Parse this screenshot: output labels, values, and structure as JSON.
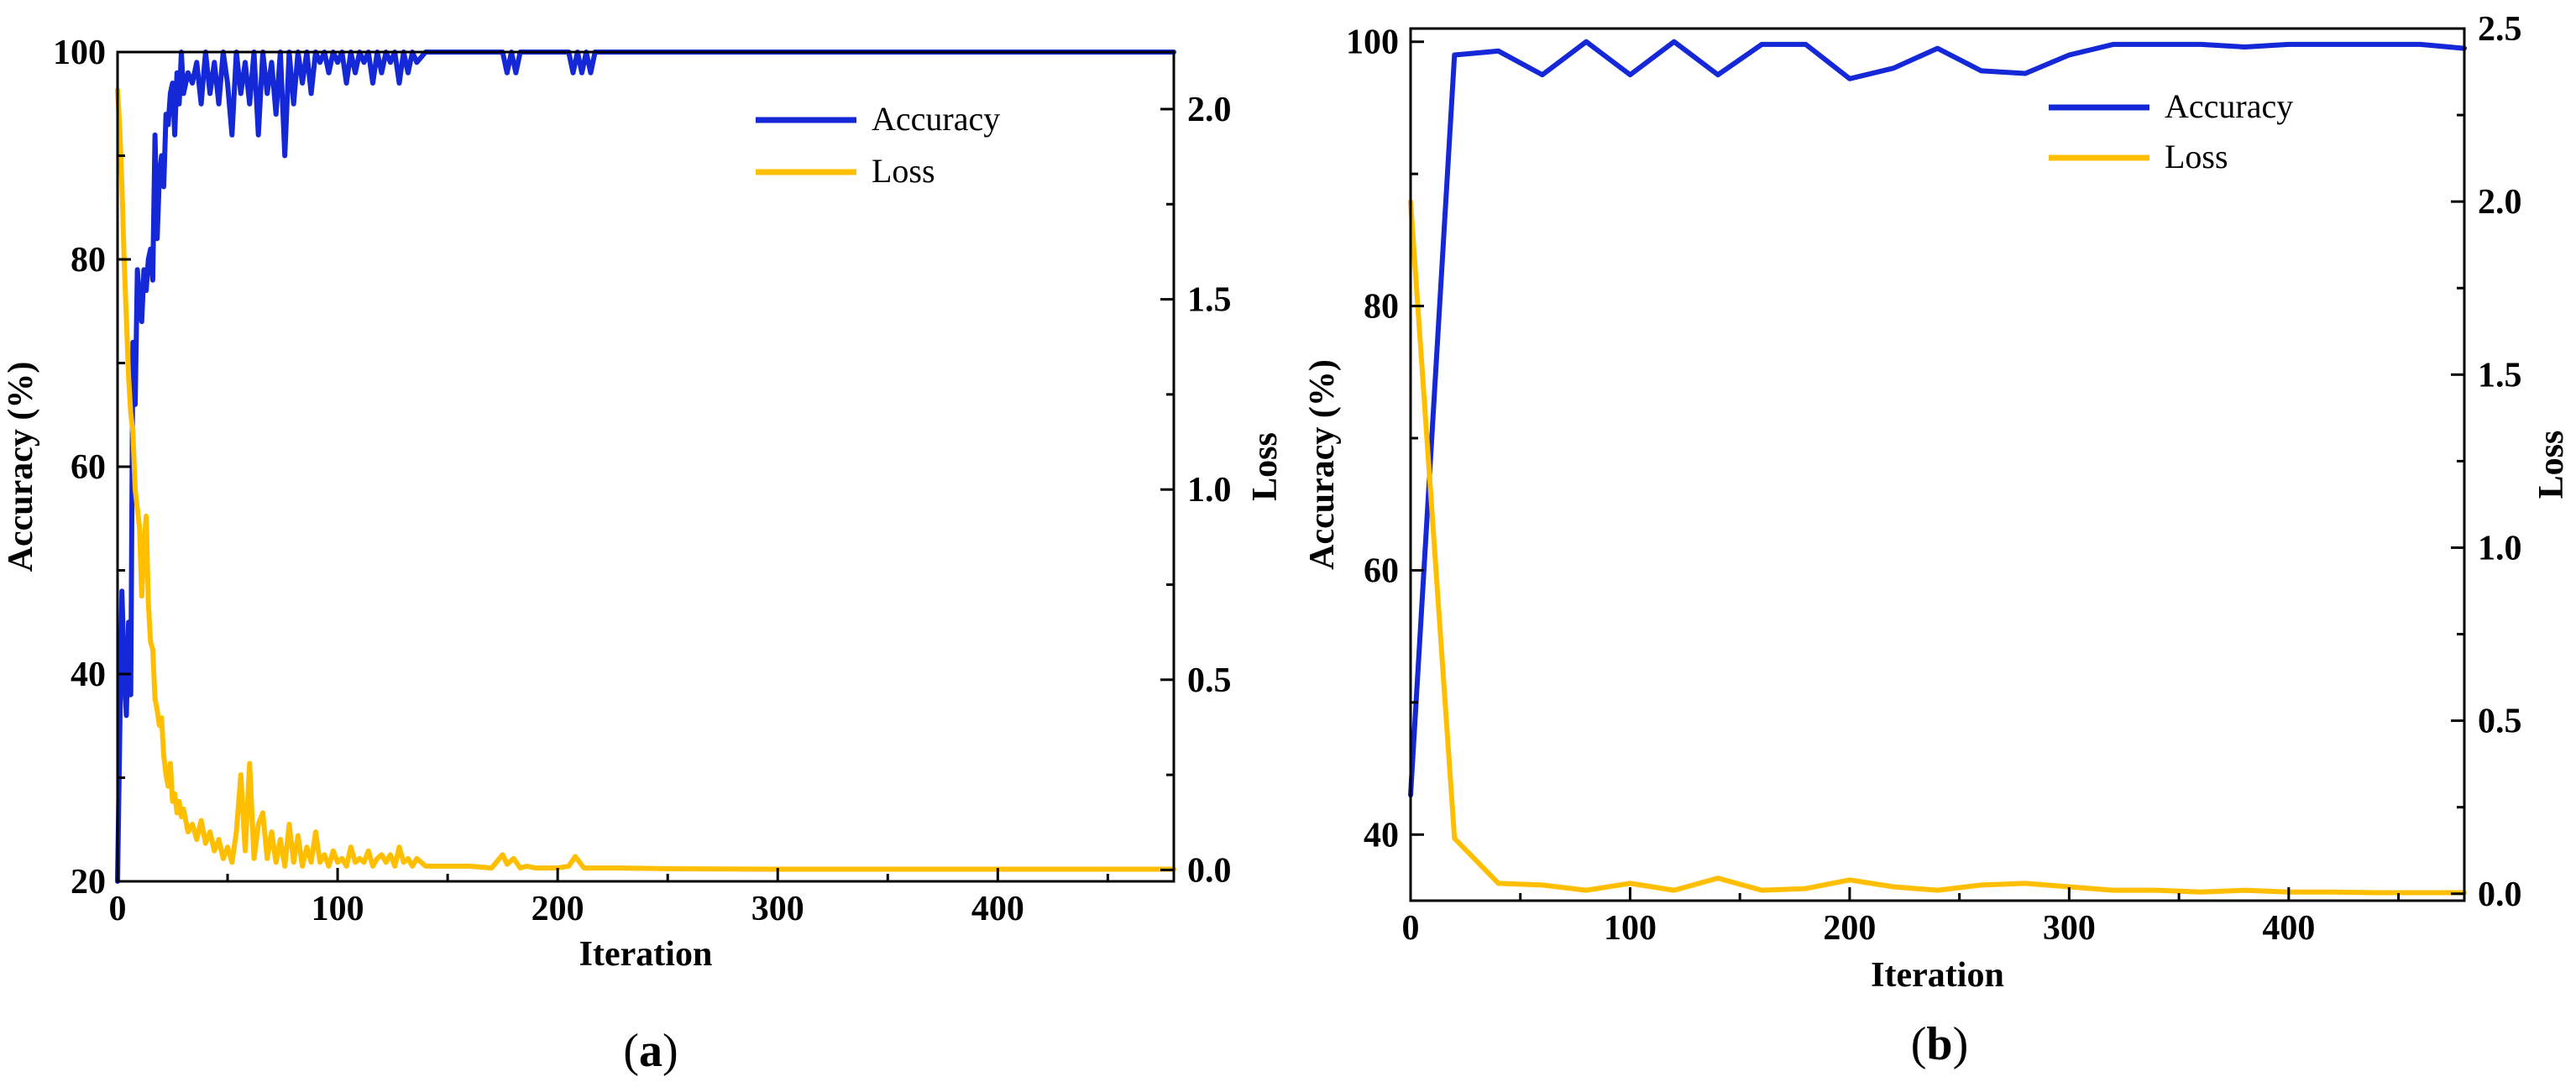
{
  "colors": {
    "accuracy": "#1428d8",
    "loss": "#ffbf00",
    "axis": "#000000"
  },
  "chart_data": [
    {
      "type": "line",
      "panel_label": "a",
      "xlabel": "Iteration",
      "ylabel": "Accuracy (%)",
      "y2label": "Loss",
      "xlim": [
        0,
        480
      ],
      "ylim": [
        20,
        100
      ],
      "y2lim": [
        -0.03,
        2.15
      ],
      "xticks": [
        0,
        100,
        200,
        300,
        400
      ],
      "yticks": [
        20,
        40,
        60,
        80,
        100
      ],
      "y2ticks": [
        0.0,
        0.5,
        1.0,
        1.5,
        2.0
      ],
      "y2tick_labels": [
        "0.0",
        "0.5",
        "1.0",
        "1.5",
        "2.0"
      ],
      "legend": [
        "Accuracy",
        "Loss"
      ],
      "legend_position": "top-right",
      "series": [
        {
          "name": "Accuracy",
          "axis": "left",
          "color": "#1428d8",
          "x": [
            0,
            2,
            3,
            4,
            5,
            6,
            7,
            8,
            9,
            10,
            11,
            12,
            13,
            14,
            15,
            16,
            17,
            18,
            19,
            20,
            21,
            22,
            23,
            24,
            25,
            26,
            27,
            28,
            29,
            30,
            32,
            34,
            36,
            38,
            40,
            42,
            44,
            46,
            48,
            50,
            52,
            54,
            56,
            58,
            60,
            62,
            64,
            66,
            68,
            70,
            72,
            74,
            76,
            78,
            80,
            82,
            84,
            86,
            88,
            90,
            92,
            94,
            96,
            98,
            100,
            102,
            104,
            106,
            108,
            110,
            112,
            114,
            116,
            118,
            120,
            122,
            124,
            126,
            128,
            130,
            132,
            134,
            136,
            140,
            175,
            177,
            179,
            181,
            183,
            185,
            205,
            207,
            209,
            211,
            213,
            215,
            217,
            480
          ],
          "y": [
            20,
            48,
            40,
            36,
            45,
            38,
            72,
            66,
            79,
            76,
            74,
            79,
            77,
            80,
            81,
            78,
            92,
            82,
            88,
            90,
            87,
            94,
            93,
            96,
            97,
            92,
            98,
            95,
            100,
            96,
            98,
            97,
            99,
            95,
            100,
            96,
            99,
            95,
            100,
            97,
            92,
            100,
            96,
            99,
            95,
            100,
            92,
            100,
            96,
            99,
            94,
            100,
            90,
            100,
            95,
            100,
            97,
            100,
            96,
            100,
            99,
            100,
            98,
            100,
            99,
            100,
            97,
            100,
            98,
            100,
            99,
            100,
            97,
            100,
            98,
            100,
            99,
            100,
            97,
            100,
            98,
            100,
            99,
            100,
            100,
            98,
            100,
            98,
            100,
            100,
            100,
            98,
            100,
            98,
            100,
            98,
            100,
            100
          ]
        },
        {
          "name": "Loss",
          "axis": "right",
          "color": "#ffbf00",
          "x": [
            0,
            1,
            2,
            3,
            4,
            5,
            6,
            7,
            8,
            9,
            10,
            11,
            12,
            13,
            14,
            15,
            16,
            17,
            18,
            19,
            20,
            21,
            22,
            23,
            24,
            25,
            26,
            27,
            28,
            29,
            30,
            32,
            34,
            36,
            38,
            40,
            42,
            44,
            46,
            48,
            50,
            52,
            54,
            56,
            58,
            60,
            62,
            64,
            66,
            68,
            70,
            72,
            74,
            76,
            78,
            80,
            82,
            84,
            86,
            88,
            90,
            92,
            94,
            96,
            98,
            100,
            102,
            104,
            106,
            108,
            110,
            112,
            114,
            116,
            118,
            120,
            122,
            124,
            126,
            128,
            130,
            132,
            134,
            136,
            140,
            150,
            160,
            170,
            175,
            177,
            180,
            183,
            186,
            190,
            200,
            205,
            208,
            212,
            220,
            230,
            250,
            300,
            350,
            400,
            450,
            480
          ],
          "y": [
            2.05,
            1.95,
            1.8,
            1.6,
            1.45,
            1.3,
            1.2,
            1.15,
            1.0,
            0.95,
            0.9,
            0.72,
            0.85,
            0.93,
            0.7,
            0.6,
            0.58,
            0.45,
            0.42,
            0.38,
            0.4,
            0.3,
            0.25,
            0.22,
            0.28,
            0.18,
            0.2,
            0.15,
            0.18,
            0.14,
            0.16,
            0.1,
            0.12,
            0.08,
            0.13,
            0.07,
            0.1,
            0.05,
            0.08,
            0.03,
            0.06,
            0.02,
            0.1,
            0.25,
            0.05,
            0.28,
            0.03,
            0.12,
            0.15,
            0.03,
            0.1,
            0.02,
            0.08,
            0.01,
            0.12,
            0.02,
            0.09,
            0.01,
            0.06,
            0.02,
            0.1,
            0.02,
            0.04,
            0.01,
            0.05,
            0.02,
            0.03,
            0.01,
            0.06,
            0.02,
            0.03,
            0.02,
            0.05,
            0.01,
            0.03,
            0.04,
            0.02,
            0.04,
            0.01,
            0.06,
            0.02,
            0.03,
            0.01,
            0.03,
            0.01,
            0.01,
            0.01,
            0.005,
            0.04,
            0.015,
            0.03,
            0.005,
            0.01,
            0.005,
            0.005,
            0.01,
            0.035,
            0.005,
            0.005,
            0.005,
            0.003,
            0.002,
            0.002,
            0.002,
            0.002,
            0.002
          ]
        }
      ]
    },
    {
      "type": "line",
      "panel_label": "b",
      "xlabel": "Iteration",
      "ylabel": "Accuracy (%)",
      "y2label": "Loss",
      "xlim": [
        0,
        480
      ],
      "ylim": [
        35,
        101
      ],
      "y2lim": [
        -0.02,
        2.5
      ],
      "xticks": [
        0,
        100,
        200,
        300,
        400
      ],
      "yticks": [
        40,
        60,
        80,
        100
      ],
      "y2ticks": [
        0.0,
        0.5,
        1.0,
        1.5,
        2.0,
        2.5
      ],
      "y2tick_labels": [
        "0.0",
        "0.5",
        "1.0",
        "1.5",
        "2.0",
        "2.5"
      ],
      "legend": [
        "Accuracy",
        "Loss"
      ],
      "legend_position": "top-right",
      "series": [
        {
          "name": "Accuracy",
          "axis": "left",
          "color": "#1428d8",
          "x": [
            0,
            20,
            40,
            60,
            80,
            100,
            120,
            140,
            160,
            180,
            200,
            220,
            240,
            260,
            280,
            300,
            320,
            340,
            360,
            380,
            400,
            420,
            440,
            460,
            480
          ],
          "y": [
            43,
            99,
            99.3,
            97.5,
            100,
            97.5,
            100,
            97.5,
            99.8,
            99.8,
            97.2,
            98,
            99.5,
            97.8,
            97.6,
            99,
            99.8,
            99.8,
            99.8,
            99.6,
            99.8,
            99.8,
            99.8,
            99.8,
            99.5
          ]
        },
        {
          "name": "Loss",
          "axis": "right",
          "color": "#ffbf00",
          "x": [
            0,
            20,
            40,
            60,
            80,
            100,
            120,
            140,
            160,
            180,
            200,
            220,
            240,
            260,
            280,
            300,
            320,
            340,
            360,
            380,
            400,
            420,
            440,
            460,
            480
          ],
          "y": [
            2.0,
            0.16,
            0.03,
            0.025,
            0.01,
            0.03,
            0.01,
            0.045,
            0.01,
            0.015,
            0.04,
            0.02,
            0.01,
            0.025,
            0.03,
            0.02,
            0.01,
            0.01,
            0.005,
            0.01,
            0.005,
            0.005,
            0.003,
            0.003,
            0.003
          ]
        }
      ]
    }
  ]
}
